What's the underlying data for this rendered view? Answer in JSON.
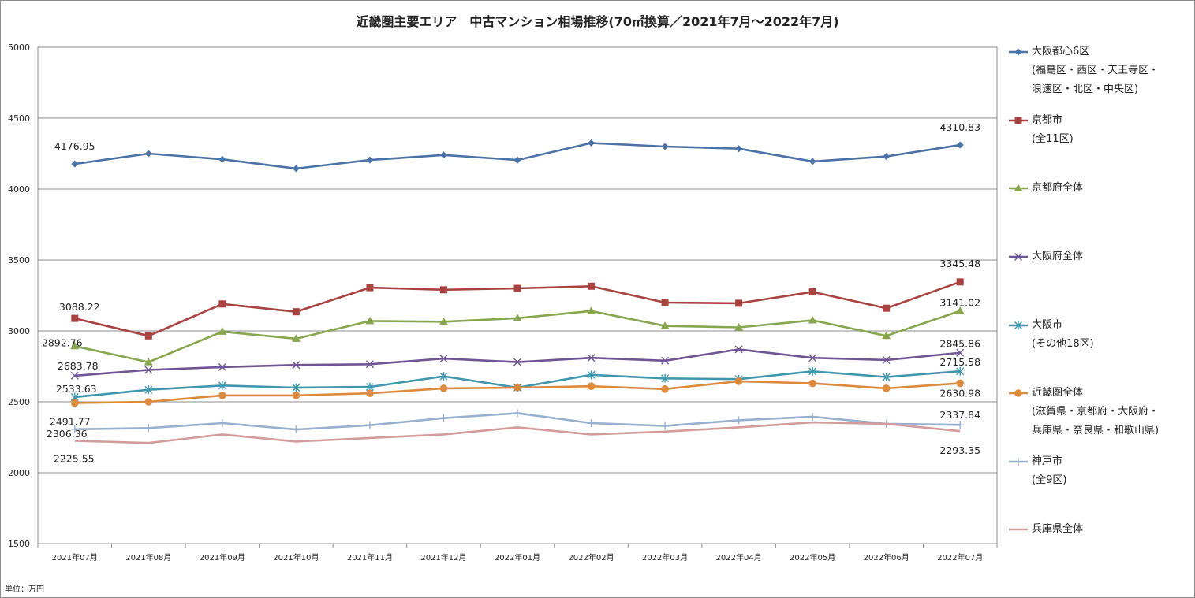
{
  "unit_note": "単位：万円",
  "chart_data": {
    "type": "line",
    "title": "近畿圏主要エリア　中古マンション相場推移(70㎡換算／2021年7月～2022年7月)",
    "xlabel": "",
    "ylabel": "",
    "ylim": [
      1500,
      5000
    ],
    "yticks": [
      1500,
      2000,
      2500,
      3000,
      3500,
      4000,
      4500,
      5000
    ],
    "grid": true,
    "legend_position": "right",
    "categories": [
      "2021年07月",
      "2021年08月",
      "2021年09月",
      "2021年10月",
      "2021年11月",
      "2021年12月",
      "2022年01月",
      "2022年02月",
      "2022年03月",
      "2022年04月",
      "2022年05月",
      "2022年06月",
      "2022年07月"
    ],
    "series": [
      {
        "name": "大阪都心6区",
        "legend_lines": [
          "大阪都心6区",
          "(福島区・西区・天王寺区・",
          "浪速区・北区・中央区)"
        ],
        "color": "#4a72a6",
        "marker": "diamond",
        "values": [
          4176.95,
          4250,
          4210,
          4145,
          4205,
          4240,
          4205,
          4325,
          4300,
          4285,
          4195,
          4230,
          4310.83
        ]
      },
      {
        "name": "京都市",
        "legend_lines": [
          "京都市",
          "(全11区)"
        ],
        "color": "#a94341",
        "marker": "square",
        "values": [
          3088.22,
          2965,
          3190,
          3135,
          3305,
          3290,
          3300,
          3315,
          3200,
          3195,
          3275,
          3160,
          3345.48
        ]
      },
      {
        "name": "京都府全体",
        "legend_lines": [
          "京都府全体"
        ],
        "color": "#88a64e",
        "marker": "triangle",
        "values": [
          2892.76,
          2780,
          2995,
          2945,
          3070,
          3065,
          3090,
          3140,
          3035,
          3025,
          3075,
          2965,
          3141.02
        ]
      },
      {
        "name": "大阪府全体",
        "legend_lines": [
          "大阪府全体"
        ],
        "color": "#6f5594",
        "marker": "x",
        "values": [
          2683.78,
          2725,
          2745,
          2760,
          2765,
          2805,
          2780,
          2810,
          2790,
          2870,
          2810,
          2795,
          2845.86
        ]
      },
      {
        "name": "大阪市",
        "legend_lines": [
          "大阪市",
          "(その他18区)"
        ],
        "color": "#3f96ad",
        "marker": "asterisk",
        "values": [
          2533.63,
          2585,
          2615,
          2600,
          2605,
          2680,
          2600,
          2690,
          2665,
          2660,
          2715,
          2675,
          2715.58
        ]
      },
      {
        "name": "近畿圏全体",
        "legend_lines": [
          "近畿圏全体",
          "(滋賀県・京都府・大阪府・",
          "兵庫県・奈良県・和歌山県)"
        ],
        "color": "#dc8b3e",
        "marker": "circle",
        "values": [
          2491.77,
          2500,
          2545,
          2545,
          2560,
          2595,
          2600,
          2610,
          2590,
          2645,
          2630,
          2595,
          2630.98
        ]
      },
      {
        "name": "神戸市",
        "legend_lines": [
          "神戸市",
          "(全9区)"
        ],
        "color": "#98b0cf",
        "marker": "plus",
        "values": [
          2306.36,
          2315,
          2350,
          2305,
          2335,
          2385,
          2420,
          2350,
          2330,
          2370,
          2395,
          2345,
          2337.84
        ]
      },
      {
        "name": "兵庫県全体",
        "legend_lines": [
          "兵庫県全体"
        ],
        "color": "#d39b9a",
        "marker": "none",
        "values": [
          2225.55,
          2210,
          2270,
          2220,
          2245,
          2270,
          2320,
          2270,
          2290,
          2320,
          2355,
          2345,
          2293.35
        ]
      }
    ],
    "data_labels": [
      {
        "series": 0,
        "index": 0,
        "text": "4176.95"
      },
      {
        "series": 0,
        "index": 12,
        "text": "4310.83"
      },
      {
        "series": 1,
        "index": 0,
        "text": "3088.22"
      },
      {
        "series": 1,
        "index": 12,
        "text": "3345.48"
      },
      {
        "series": 2,
        "index": 0,
        "text": "2892.76"
      },
      {
        "series": 2,
        "index": 12,
        "text": "3141.02"
      },
      {
        "series": 3,
        "index": 0,
        "text": "2683.78"
      },
      {
        "series": 3,
        "index": 12,
        "text": "2845.86"
      },
      {
        "series": 4,
        "index": 0,
        "text": "2533.63"
      },
      {
        "series": 4,
        "index": 12,
        "text": "2715.58"
      },
      {
        "series": 5,
        "index": 0,
        "text": "2491.77"
      },
      {
        "series": 5,
        "index": 12,
        "text": "2630.98"
      },
      {
        "series": 6,
        "index": 0,
        "text": "2306.36"
      },
      {
        "series": 6,
        "index": 12,
        "text": "2337.84"
      },
      {
        "series": 7,
        "index": 0,
        "text": "2225.55"
      },
      {
        "series": 7,
        "index": 12,
        "text": "2293.35"
      }
    ]
  }
}
